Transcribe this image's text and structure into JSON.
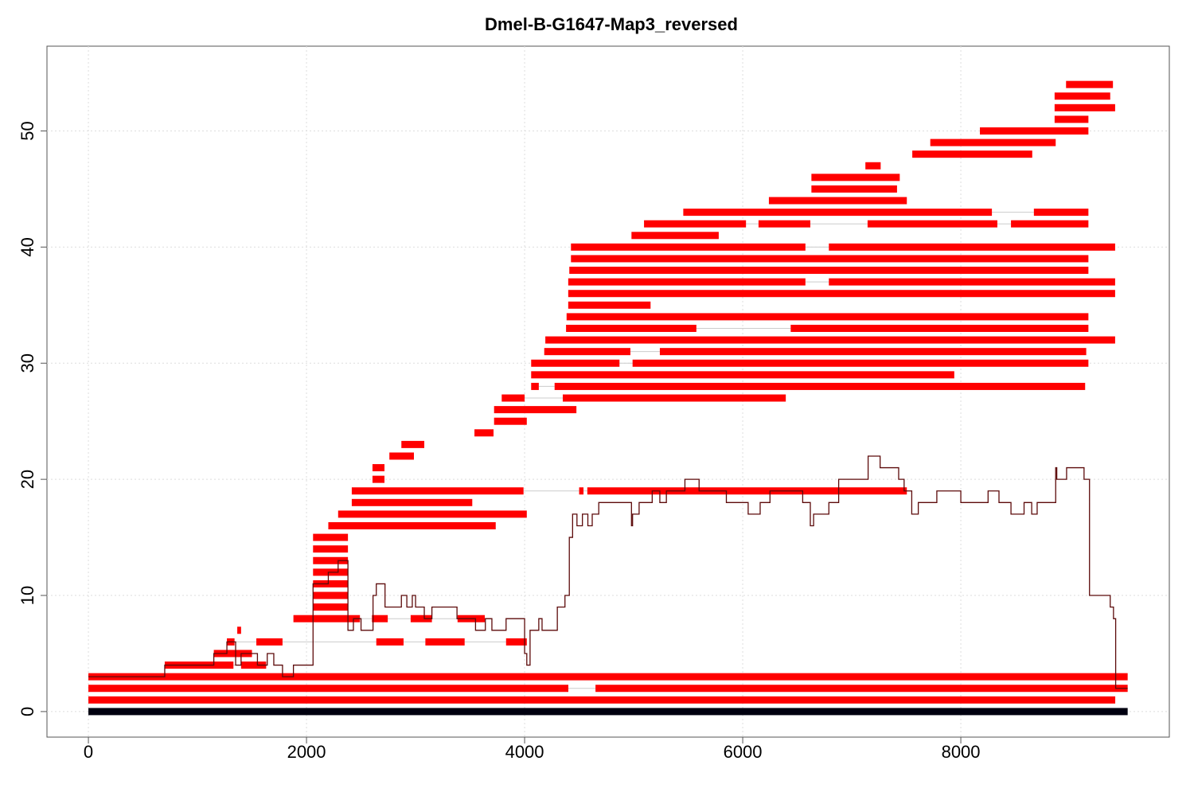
{
  "chart_data": {
    "type": "alignment-map",
    "title": "Dmel-B-G1647-Map3_reversed",
    "xlim": [
      -380,
      9912
    ],
    "ylim": [
      -2.2,
      57.3
    ],
    "xticks": [
      0,
      2000,
      4000,
      6000,
      8000
    ],
    "yticks": [
      0,
      10,
      20,
      30,
      40,
      50
    ],
    "grid": true,
    "read_color": "#ff0000",
    "gap_color": "#cccccc",
    "reads": [
      {
        "y": 0,
        "color": "#000010",
        "blocks": [
          [
            0,
            9530
          ]
        ]
      },
      {
        "y": 1,
        "blocks": [
          [
            0,
            9416
          ]
        ]
      },
      {
        "y": 2,
        "blocks": [
          [
            0,
            4401
          ],
          [
            4650,
            9530
          ]
        ]
      },
      {
        "y": 3,
        "blocks": [
          [
            0,
            9530
          ]
        ]
      },
      {
        "y": 4,
        "blocks": [
          [
            700,
            1330
          ],
          [
            1400,
            1630
          ]
        ]
      },
      {
        "y": 5,
        "blocks": [
          [
            1150,
            1500
          ]
        ]
      },
      {
        "y": 6,
        "blocks": [
          [
            1270,
            1340
          ],
          [
            1540,
            1780
          ],
          [
            2640,
            2890
          ],
          [
            3090,
            3450
          ],
          [
            3830,
            4020
          ]
        ]
      },
      {
        "y": 7,
        "blocks": [
          [
            1365,
            1400
          ]
        ]
      },
      {
        "y": 8,
        "blocks": [
          [
            1880,
            2490
          ],
          [
            2600,
            2745
          ],
          [
            2955,
            3150
          ],
          [
            3385,
            3635
          ]
        ]
      },
      {
        "y": 9,
        "blocks": [
          [
            2060,
            2380
          ]
        ]
      },
      {
        "y": 10,
        "blocks": [
          [
            2060,
            2380
          ]
        ]
      },
      {
        "y": 11,
        "blocks": [
          [
            2060,
            2380
          ]
        ]
      },
      {
        "y": 12,
        "blocks": [
          [
            2060,
            2380
          ]
        ]
      },
      {
        "y": 13,
        "blocks": [
          [
            2060,
            2380
          ]
        ]
      },
      {
        "y": 14,
        "blocks": [
          [
            2060,
            2380
          ]
        ]
      },
      {
        "y": 15,
        "blocks": [
          [
            2060,
            2380
          ]
        ]
      },
      {
        "y": 16,
        "blocks": [
          [
            2200,
            3735
          ]
        ]
      },
      {
        "y": 17,
        "blocks": [
          [
            2290,
            4020
          ]
        ]
      },
      {
        "y": 18,
        "blocks": [
          [
            2415,
            3520
          ]
        ]
      },
      {
        "y": 19,
        "blocks": [
          [
            2415,
            3990
          ],
          [
            4500,
            4540
          ],
          [
            4575,
            7505
          ]
        ]
      },
      {
        "y": 20,
        "blocks": [
          [
            2605,
            2715
          ]
        ]
      },
      {
        "y": 21,
        "blocks": [
          [
            2605,
            2715
          ]
        ]
      },
      {
        "y": 22,
        "blocks": [
          [
            2760,
            2985
          ]
        ]
      },
      {
        "y": 23,
        "blocks": [
          [
            2870,
            3080
          ]
        ]
      },
      {
        "y": 24,
        "blocks": [
          [
            3540,
            3715
          ]
        ]
      },
      {
        "y": 25,
        "blocks": [
          [
            3720,
            4020
          ]
        ]
      },
      {
        "y": 26,
        "blocks": [
          [
            3720,
            4475
          ]
        ]
      },
      {
        "y": 27,
        "blocks": [
          [
            3790,
            4000
          ],
          [
            4350,
            6395
          ]
        ]
      },
      {
        "y": 28,
        "blocks": [
          [
            4060,
            4130
          ],
          [
            4275,
            9140
          ]
        ]
      },
      {
        "y": 29,
        "blocks": [
          [
            4060,
            7940
          ]
        ]
      },
      {
        "y": 30,
        "blocks": [
          [
            4060,
            4870
          ],
          [
            4990,
            9170
          ]
        ]
      },
      {
        "y": 31,
        "blocks": [
          [
            4180,
            4970
          ],
          [
            5240,
            9150
          ]
        ]
      },
      {
        "y": 32,
        "blocks": [
          [
            4190,
            9415
          ]
        ]
      },
      {
        "y": 33,
        "blocks": [
          [
            4380,
            5575
          ],
          [
            6440,
            9170
          ]
        ]
      },
      {
        "y": 34,
        "blocks": [
          [
            4385,
            9170
          ]
        ]
      },
      {
        "y": 35,
        "blocks": [
          [
            4400,
            5155
          ]
        ]
      },
      {
        "y": 36,
        "blocks": [
          [
            4400,
            9415
          ]
        ]
      },
      {
        "y": 37,
        "blocks": [
          [
            4400,
            6575
          ],
          [
            6790,
            9415
          ]
        ]
      },
      {
        "y": 38,
        "blocks": [
          [
            4410,
            9170
          ]
        ]
      },
      {
        "y": 39,
        "blocks": [
          [
            4425,
            9170
          ]
        ]
      },
      {
        "y": 40,
        "blocks": [
          [
            4425,
            6575
          ],
          [
            6790,
            9415
          ]
        ]
      },
      {
        "y": 41,
        "blocks": [
          [
            4980,
            5780
          ]
        ]
      },
      {
        "y": 42,
        "blocks": [
          [
            5095,
            6030
          ],
          [
            6145,
            6620
          ],
          [
            7145,
            8335
          ],
          [
            8460,
            9170
          ]
        ]
      },
      {
        "y": 43,
        "blocks": [
          [
            5455,
            8285
          ],
          [
            8670,
            9170
          ]
        ]
      },
      {
        "y": 44,
        "blocks": [
          [
            6240,
            7505
          ]
        ]
      },
      {
        "y": 45,
        "blocks": [
          [
            6630,
            7415
          ]
        ]
      },
      {
        "y": 46,
        "blocks": [
          [
            6630,
            7440
          ]
        ]
      },
      {
        "y": 47,
        "blocks": [
          [
            7125,
            7265
          ]
        ]
      },
      {
        "y": 48,
        "blocks": [
          [
            7555,
            8655
          ]
        ]
      },
      {
        "y": 49,
        "blocks": [
          [
            7720,
            8870
          ]
        ]
      },
      {
        "y": 50,
        "blocks": [
          [
            8175,
            9170
          ]
        ]
      },
      {
        "y": 51,
        "blocks": [
          [
            8860,
            9170
          ]
        ]
      },
      {
        "y": 52,
        "blocks": [
          [
            8860,
            9415
          ]
        ]
      },
      {
        "y": 53,
        "blocks": [
          [
            8860,
            9370
          ]
        ]
      },
      {
        "y": 54,
        "blocks": [
          [
            8965,
            9395
          ]
        ]
      }
    ],
    "coverage": {
      "color": "#5c0a0a",
      "x": [
        0,
        700,
        1150,
        1270,
        1350,
        1400,
        1550,
        1640,
        1700,
        1780,
        1880,
        2060,
        2200,
        2290,
        2380,
        2430,
        2500,
        2610,
        2640,
        2720,
        2860,
        2870,
        2920,
        2970,
        3000,
        3080,
        3150,
        3380,
        3450,
        3550,
        3640,
        3700,
        3830,
        3920,
        4000,
        4020,
        4050,
        4130,
        4160,
        4300,
        4370,
        4410,
        4440,
        4480,
        4530,
        4580,
        4620,
        4680,
        4980,
        4990,
        5050,
        5170,
        5240,
        5300,
        5470,
        5600,
        5850,
        6050,
        6160,
        6250,
        6550,
        6620,
        6650,
        6790,
        6880,
        7150,
        7260,
        7430,
        7480,
        7550,
        7610,
        7780,
        8000,
        8250,
        8350,
        8460,
        8580,
        8650,
        8700,
        8870,
        8880,
        8970,
        9130,
        9180,
        9370,
        9400,
        9420,
        9530
      ],
      "values": [
        3,
        4,
        5,
        6,
        4,
        5,
        4,
        5,
        4,
        3,
        4,
        11,
        12,
        13,
        7,
        8,
        7,
        10,
        11,
        9,
        9,
        10,
        9,
        10,
        9,
        8,
        9,
        8,
        8,
        7,
        8,
        7,
        8,
        8,
        5,
        4,
        7,
        8,
        7,
        9,
        10,
        15,
        17,
        16,
        17,
        16,
        17,
        18,
        16,
        17,
        18,
        19,
        18,
        19,
        20,
        19,
        18,
        17,
        18,
        19,
        18,
        16,
        17,
        18,
        20,
        22,
        21,
        20,
        19,
        17,
        18,
        19,
        18,
        19,
        18,
        17,
        18,
        17,
        18,
        21,
        20,
        21,
        20,
        10,
        9,
        8,
        2,
        2
      ]
    }
  }
}
